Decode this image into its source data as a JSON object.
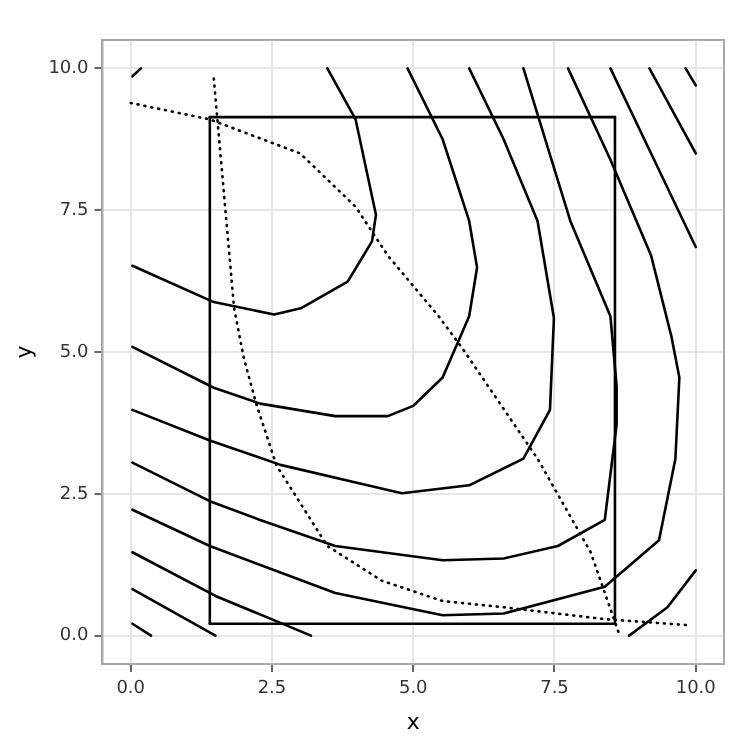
{
  "chart_data": {
    "type": "line",
    "xlabel": "x",
    "ylabel": "y",
    "xlim": [
      -0.5,
      10.5
    ],
    "ylim": [
      -0.5,
      10.5
    ],
    "xticks": [
      {
        "value": 0,
        "label": "0.0"
      },
      {
        "value": 2.5,
        "label": "2.5"
      },
      {
        "value": 5,
        "label": "5.0"
      },
      {
        "value": 7.5,
        "label": "7.5"
      },
      {
        "value": 10,
        "label": "10.0"
      }
    ],
    "yticks": [
      {
        "value": 0,
        "label": "0.0"
      },
      {
        "value": 2.5,
        "label": "2.5"
      },
      {
        "value": 5,
        "label": "5.0"
      },
      {
        "value": 7.5,
        "label": "7.5"
      },
      {
        "value": 10,
        "label": "10.0"
      }
    ],
    "grid": true,
    "legend": false,
    "marker": "none",
    "line_style": "solid",
    "series": [
      {
        "color": "#000000",
        "x": [
          0.03,
          1.47,
          2.54,
          3.01,
          3.84,
          4.27,
          4.34,
          3.98,
          3.48
        ],
        "values": [
          6.52,
          5.88,
          5.66,
          5.77,
          6.24,
          6.95,
          7.42,
          9.1,
          10.0
        ]
      },
      {
        "color": "#000000",
        "x": [
          0.03,
          1.47,
          2.29,
          3.62,
          4.55,
          5.0,
          5.52,
          5.99,
          6.13,
          5.99,
          5.52,
          4.9
        ],
        "values": [
          5.09,
          4.37,
          4.09,
          3.87,
          3.87,
          4.05,
          4.55,
          5.63,
          6.49,
          7.31,
          8.75,
          10
        ]
      },
      {
        "color": "#000000",
        "x": [
          0.03,
          1.4,
          2.65,
          4.19,
          4.8,
          5.99,
          6.95,
          7.42,
          7.49,
          7.2,
          6.6,
          5.99
        ],
        "values": [
          3.98,
          3.44,
          3.01,
          2.65,
          2.51,
          2.65,
          3.12,
          3.98,
          5.6,
          7.31,
          8.75,
          10
        ]
      },
      {
        "color": "#000000",
        "x": [
          0.03,
          1.4,
          2.29,
          3.62,
          5.52,
          6.6,
          7.56,
          8.39,
          8.6,
          8.6,
          8.49,
          7.78,
          6.95
        ],
        "values": [
          3.05,
          2.37,
          2.04,
          1.58,
          1.33,
          1.36,
          1.58,
          2.04,
          3.73,
          4.4,
          5.63,
          7.31,
          10
        ]
      },
      {
        "color": "#000000",
        "x": [
          0.03,
          1.4,
          3.62,
          5.52,
          6.6,
          8.39,
          9.35,
          9.64,
          9.71,
          9.57,
          9.21,
          8.49,
          7.74
        ],
        "values": [
          2.22,
          1.58,
          0.75,
          0.36,
          0.39,
          0.86,
          1.68,
          3.12,
          4.55,
          5.27,
          6.7,
          8.39,
          10
        ]
      },
      {
        "color": "#000000",
        "x": [
          0.03,
          1.5,
          3.19
        ],
        "values": [
          1.47,
          0.7,
          0
        ]
      },
      {
        "color": "#000000",
        "x": [
          8.49,
          9.21,
          10
        ],
        "values": [
          10,
          8.5,
          6.85
        ]
      },
      {
        "color": "#000000",
        "x": [
          0.03,
          1.5
        ],
        "values": [
          0.82,
          0
        ]
      },
      {
        "color": "#000000",
        "x": [
          9.18,
          10
        ],
        "values": [
          10,
          8.5
        ]
      },
      {
        "color": "#000000",
        "x": [
          0.03,
          0.36
        ],
        "values": [
          0.21,
          0
        ]
      },
      {
        "color": "#000000",
        "x": [
          9.82,
          10
        ],
        "values": [
          10,
          9.7
        ]
      },
      {
        "color": "#000000",
        "x": [
          0.03,
          0.18
        ],
        "values": [
          9.86,
          10
        ]
      },
      {
        "color": "#000000",
        "x": [
          8.82,
          9.5,
          10
        ],
        "values": [
          0,
          0.5,
          1.15
        ]
      },
      {
        "color": "#000000",
        "x": [
          1.4,
          1.4
        ],
        "values": [
          0.21,
          9.14
        ]
      },
      {
        "color": "#000000",
        "x": [
          1.4,
          8.57
        ],
        "values": [
          9.14,
          9.14
        ]
      },
      {
        "color": "#000000",
        "x": [
          8.57,
          8.57
        ],
        "values": [
          9.14,
          0.21
        ]
      },
      {
        "color": "#000000",
        "x": [
          1.4,
          8.57
        ],
        "values": [
          0.21,
          0.21
        ]
      },
      {
        "color": "#000000",
        "line_style": "dotted",
        "x": [
          0,
          1.4,
          3.0,
          3.98,
          4.55,
          5.45,
          5.88,
          7.2,
          8.14,
          8.64
        ],
        "values": [
          9.39,
          9.1,
          8.5,
          7.56,
          6.7,
          5.63,
          5.05,
          3.12,
          1.47,
          0.04
        ]
      },
      {
        "color": "#000000",
        "line_style": "dotted",
        "x": [
          1.47,
          1.83,
          2.0,
          2.22,
          2.58,
          3.48,
          4.44,
          5.52,
          6.6,
          8.39,
          9.93
        ],
        "values": [
          9.82,
          5.77,
          4.9,
          4.09,
          3.0,
          1.58,
          0.97,
          0.61,
          0.5,
          0.29,
          0.18
        ]
      }
    ]
  }
}
